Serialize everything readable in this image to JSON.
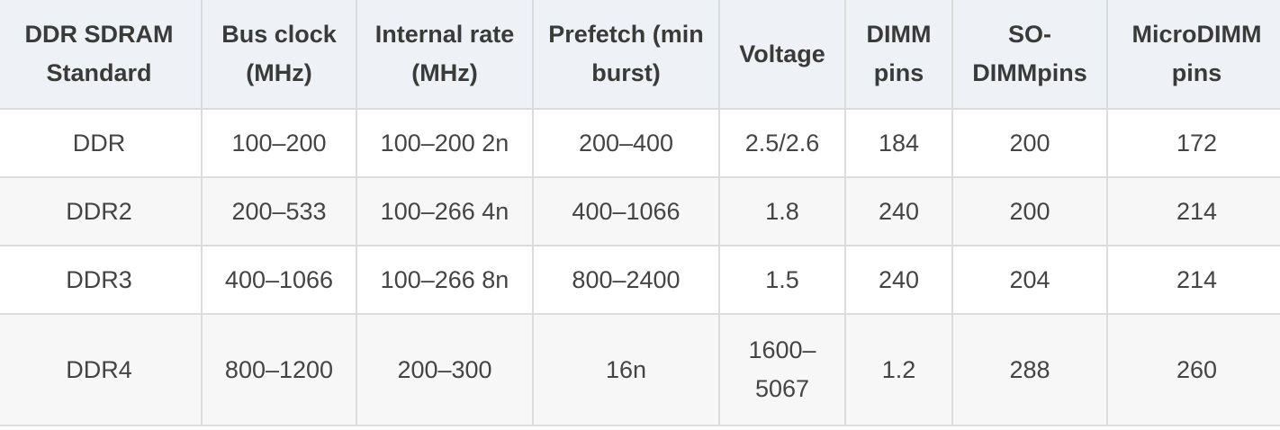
{
  "table": {
    "headers": [
      "DDR SDRAM Standard",
      "Bus clock (MHz)",
      "Internal rate (MHz)",
      "Prefetch (min burst)",
      "Voltage",
      "DIMM pins",
      "SO-DIMMpins",
      "MicroDIMM pins"
    ],
    "rows": [
      [
        "DDR",
        "100–200",
        "100–200 2n",
        "200–400",
        "2.5/2.6",
        "184",
        "200",
        "172"
      ],
      [
        "DDR2",
        "200–533",
        "100–266 4n",
        "400–1066",
        "1.8",
        "240",
        "200",
        "214"
      ],
      [
        "DDR3",
        "400–1066",
        "100–266 8n",
        "800–2400",
        "1.5",
        "240",
        "204",
        "214"
      ],
      [
        "DDR4",
        "800–1200",
        "200–300",
        "16n",
        "1600–5067",
        "1.2",
        "288",
        "260"
      ]
    ]
  }
}
